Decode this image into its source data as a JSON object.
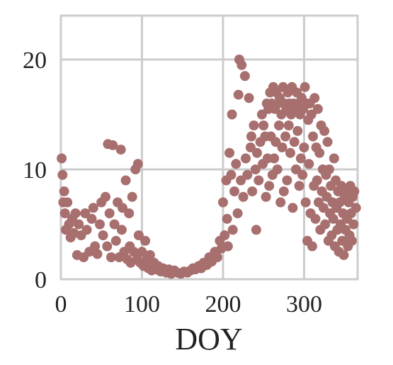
{
  "chart_data": {
    "type": "scatter",
    "title": "",
    "xlabel": "DOY",
    "ylabel": "",
    "xlim": [
      0,
      366
    ],
    "ylim": [
      0,
      24
    ],
    "xticks": [
      0,
      100,
      200,
      300
    ],
    "yticks": [
      0,
      10,
      20
    ],
    "x_tick_labels": [
      "0",
      "100",
      "200",
      "300"
    ],
    "y_tick_labels": [
      "0",
      "10",
      "20"
    ],
    "grid": true,
    "legend": "none",
    "point_color": "#a86f6f",
    "grid_color": "#cccccc",
    "series": [
      {
        "points": [
          [
            1,
            11
          ],
          [
            2,
            9.5
          ],
          [
            3,
            7
          ],
          [
            4,
            8
          ],
          [
            5,
            6
          ],
          [
            6,
            4.5
          ],
          [
            8,
            7
          ],
          [
            10,
            5
          ],
          [
            12,
            3.8
          ],
          [
            14,
            5.5
          ],
          [
            16,
            4.2
          ],
          [
            18,
            6
          ],
          [
            20,
            2.2
          ],
          [
            22,
            5
          ],
          [
            25,
            4
          ],
          [
            28,
            2
          ],
          [
            30,
            6
          ],
          [
            32,
            4.5
          ],
          [
            35,
            2.5
          ],
          [
            38,
            5.5
          ],
          [
            40,
            6.5
          ],
          [
            42,
            3
          ],
          [
            45,
            2.3
          ],
          [
            48,
            5
          ],
          [
            50,
            7
          ],
          [
            52,
            4
          ],
          [
            55,
            7.5
          ],
          [
            57,
            3
          ],
          [
            58,
            12.3
          ],
          [
            60,
            6
          ],
          [
            62,
            2
          ],
          [
            64,
            12.2
          ],
          [
            66,
            5
          ],
          [
            68,
            3.5
          ],
          [
            70,
            7
          ],
          [
            72,
            2
          ],
          [
            74,
            11.8
          ],
          [
            75,
            4.5
          ],
          [
            76,
            6.5
          ],
          [
            78,
            2.5
          ],
          [
            80,
            9
          ],
          [
            82,
            1.8
          ],
          [
            84,
            6
          ],
          [
            85,
            3
          ],
          [
            86,
            1.5
          ],
          [
            88,
            7.5
          ],
          [
            90,
            2.5
          ],
          [
            92,
            10
          ],
          [
            94,
            1.8
          ],
          [
            95,
            10.5
          ],
          [
            96,
            4
          ],
          [
            98,
            1.5
          ],
          [
            100,
            2.5
          ],
          [
            102,
            1.2
          ],
          [
            104,
            3.5
          ],
          [
            106,
            1.8
          ],
          [
            108,
            1.0
          ],
          [
            110,
            2.2
          ],
          [
            112,
            0.8
          ],
          [
            115,
            1.5
          ],
          [
            118,
            0.9
          ],
          [
            120,
            1.2
          ],
          [
            123,
            0.7
          ],
          [
            126,
            1.0
          ],
          [
            130,
            0.6
          ],
          [
            133,
            0.9
          ],
          [
            136,
            0.5
          ],
          [
            140,
            0.8
          ],
          [
            144,
            0.6
          ],
          [
            148,
            0.5
          ],
          [
            152,
            0.7
          ],
          [
            156,
            0.6
          ],
          [
            160,
            0.8
          ],
          [
            163,
            1.0
          ],
          [
            166,
            0.9
          ],
          [
            170,
            1.2
          ],
          [
            173,
            1.0
          ],
          [
            176,
            1.5
          ],
          [
            180,
            1.3
          ],
          [
            183,
            2.0
          ],
          [
            186,
            1.6
          ],
          [
            190,
            2.5
          ],
          [
            193,
            2.0
          ],
          [
            196,
            3.5
          ],
          [
            198,
            2.8
          ],
          [
            200,
            7
          ],
          [
            202,
            4
          ],
          [
            204,
            9
          ],
          [
            205,
            5.5
          ],
          [
            206,
            3
          ],
          [
            208,
            11.5
          ],
          [
            210,
            9.5
          ],
          [
            211,
            15
          ],
          [
            212,
            4.5
          ],
          [
            214,
            8
          ],
          [
            216,
            10.5
          ],
          [
            218,
            6
          ],
          [
            219,
            16.8
          ],
          [
            220,
            20
          ],
          [
            222,
            9
          ],
          [
            223,
            19.5
          ],
          [
            225,
            7.5
          ],
          [
            227,
            18.5
          ],
          [
            228,
            11
          ],
          [
            230,
            9.5
          ],
          [
            232,
            16.5
          ],
          [
            234,
            12
          ],
          [
            235,
            13
          ],
          [
            236,
            8
          ],
          [
            238,
            14
          ],
          [
            240,
            10
          ],
          [
            241,
            4.5
          ],
          [
            242,
            11.5
          ],
          [
            244,
            9
          ],
          [
            246,
            12.5
          ],
          [
            248,
            15
          ],
          [
            249,
            10.5
          ],
          [
            250,
            14
          ],
          [
            252,
            13
          ],
          [
            253,
            7.5
          ],
          [
            254,
            16
          ],
          [
            255,
            11
          ],
          [
            256,
            15.5
          ],
          [
            257,
            8.5
          ],
          [
            258,
            17
          ],
          [
            259,
            13
          ],
          [
            260,
            16
          ],
          [
            261,
            9.5
          ],
          [
            262,
            17.5
          ],
          [
            263,
            11
          ],
          [
            264,
            15.5
          ],
          [
            265,
            12.5
          ],
          [
            266,
            17
          ],
          [
            267,
            10
          ],
          [
            268,
            16
          ],
          [
            269,
            14
          ],
          [
            270,
            16.5
          ],
          [
            271,
            7
          ],
          [
            272,
            15
          ],
          [
            273,
            12
          ],
          [
            274,
            17.5
          ],
          [
            275,
            8
          ],
          [
            276,
            16
          ],
          [
            277,
            13
          ],
          [
            278,
            15.5
          ],
          [
            279,
            9
          ],
          [
            280,
            17
          ],
          [
            281,
            14
          ],
          [
            282,
            16
          ],
          [
            283,
            11.5
          ],
          [
            284,
            15
          ],
          [
            285,
            17.5
          ],
          [
            286,
            6.5
          ],
          [
            287,
            16
          ],
          [
            288,
            12.5
          ],
          [
            289,
            15.5
          ],
          [
            290,
            10
          ],
          [
            291,
            17
          ],
          [
            292,
            13.5
          ],
          [
            293,
            16
          ],
          [
            294,
            8.5
          ],
          [
            295,
            15
          ],
          [
            296,
            11
          ],
          [
            297,
            16.5
          ],
          [
            298,
            9.5
          ],
          [
            299,
            15.5
          ],
          [
            300,
            12
          ],
          [
            301,
            17.5
          ],
          [
            302,
            7
          ],
          [
            303,
            16
          ],
          [
            304,
            3.5
          ],
          [
            305,
            14.5
          ],
          [
            306,
            10.5
          ],
          [
            307,
            16
          ],
          [
            308,
            6
          ],
          [
            309,
            15
          ],
          [
            310,
            3
          ],
          [
            311,
            13
          ],
          [
            312,
            8.5
          ],
          [
            313,
            16.5
          ],
          [
            314,
            5.5
          ],
          [
            315,
            12
          ],
          [
            316,
            9
          ],
          [
            317,
            15.5
          ],
          [
            318,
            7
          ],
          [
            319,
            11.5
          ],
          [
            320,
            4.5
          ],
          [
            321,
            14
          ],
          [
            322,
            8
          ],
          [
            323,
            10
          ],
          [
            324,
            6.5
          ],
          [
            325,
            13.5
          ],
          [
            326,
            5
          ],
          [
            327,
            9.5
          ],
          [
            328,
            7.5
          ],
          [
            329,
            12.5
          ],
          [
            330,
            3.5
          ],
          [
            331,
            10
          ],
          [
            332,
            6
          ],
          [
            333,
            8.5
          ],
          [
            334,
            4
          ],
          [
            335,
            7
          ],
          [
            336,
            5.5
          ],
          [
            337,
            11
          ],
          [
            338,
            3
          ],
          [
            339,
            9
          ],
          [
            340,
            6.5
          ],
          [
            341,
            4.5
          ],
          [
            342,
            8
          ],
          [
            343,
            2.5
          ],
          [
            344,
            7
          ],
          [
            345,
            5
          ],
          [
            346,
            8.5
          ],
          [
            347,
            3.5
          ],
          [
            348,
            6
          ],
          [
            349,
            2.2
          ],
          [
            350,
            7.5
          ],
          [
            351,
            4.5
          ],
          [
            352,
            8
          ],
          [
            353,
            5.5
          ],
          [
            354,
            3
          ],
          [
            355,
            7
          ],
          [
            356,
            4
          ],
          [
            357,
            8.5
          ],
          [
            358,
            6
          ],
          [
            359,
            3.5
          ],
          [
            360,
            7.5
          ],
          [
            361,
            5
          ],
          [
            362,
            8
          ],
          [
            364,
            6.5
          ]
        ]
      }
    ]
  }
}
